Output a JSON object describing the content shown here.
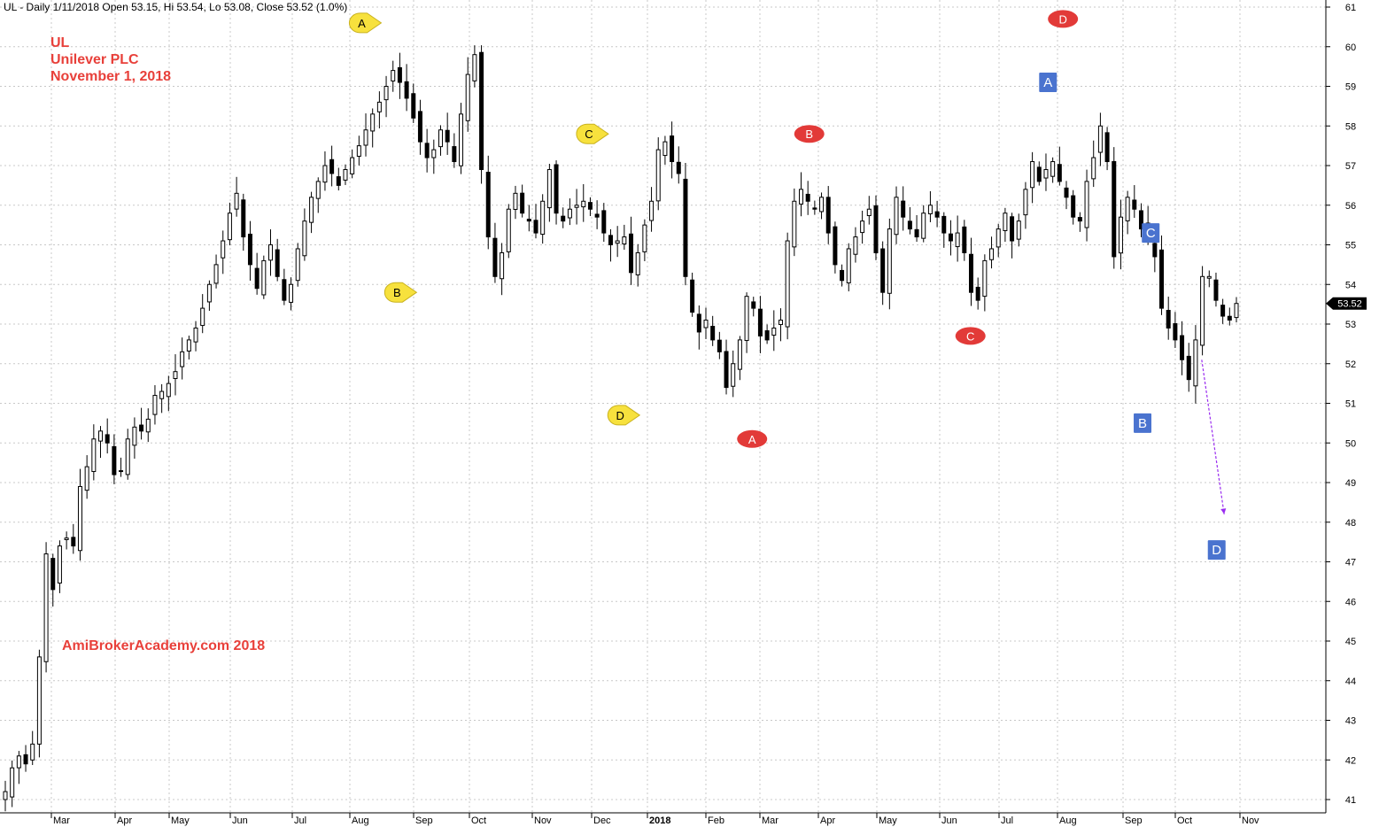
{
  "header": {
    "text": "UL - Daily 1/11/2018 Open 53.15, Hi 53.54, Lo 53.08, Close 53.52 (1.0%)"
  },
  "title": {
    "symbol": "UL",
    "name": "Unilever PLC",
    "date": "November 1, 2018"
  },
  "watermark": "AmiBrokerAcademy.com  2018",
  "chart_data": {
    "type": "candlestick",
    "ylim": [
      40.8,
      61.2
    ],
    "y_ticks": [
      41,
      42,
      43,
      44,
      45,
      46,
      47,
      48,
      49,
      50,
      51,
      52,
      53,
      54,
      55,
      56,
      57,
      58,
      59,
      60,
      61
    ],
    "x_ticks": [
      "Mar",
      "Apr",
      "May",
      "Jun",
      "Jul",
      "Aug",
      "Sep",
      "Oct",
      "Nov",
      "Dec",
      "2018",
      "Feb",
      "Mar",
      "Apr",
      "May",
      "Jun",
      "Jul",
      "Aug",
      "Sep",
      "Oct",
      "Nov"
    ],
    "last_price": "53.52",
    "grid": true,
    "series_close_approx": [
      41.2,
      41.8,
      42.1,
      41.9,
      42.4,
      44.6,
      47.2,
      46.3,
      47.4,
      47.6,
      47.4,
      48.9,
      49.4,
      50.1,
      50.3,
      50.0,
      49.2,
      49.3,
      50.1,
      50.4,
      50.3,
      50.6,
      51.2,
      51.3,
      51.5,
      51.8,
      52.3,
      52.6,
      52.9,
      53.4,
      54.0,
      54.5,
      55.1,
      55.8,
      56.3,
      55.2,
      54.5,
      53.9,
      54.6,
      55.0,
      54.2,
      53.6,
      54.0,
      54.9,
      55.6,
      56.2,
      56.6,
      57.0,
      56.8,
      56.5,
      56.9,
      57.2,
      57.5,
      57.9,
      58.3,
      58.6,
      59.0,
      59.4,
      59.1,
      58.7,
      58.2,
      57.6,
      57.2,
      57.4,
      57.9,
      57.6,
      57.1,
      58.3,
      59.3,
      59.8,
      56.9,
      55.2,
      54.2,
      54.8,
      55.9,
      56.3,
      55.8,
      55.6,
      55.3,
      56.1,
      56.9,
      55.8,
      55.6,
      55.9,
      56.0,
      56.1,
      55.9,
      55.7,
      55.3,
      55.0,
      55.1,
      55.2,
      54.3,
      54.8,
      55.5,
      56.1,
      57.4,
      57.6,
      57.1,
      56.8,
      54.2,
      53.3,
      52.8,
      53.1,
      52.6,
      52.3,
      51.4,
      52.0,
      52.6,
      53.7,
      53.4,
      52.7,
      52.6,
      52.9,
      53.1,
      55.1,
      56.1,
      56.4,
      56.1,
      55.9,
      56.2,
      55.3,
      54.5,
      54.1,
      54.9,
      55.2,
      55.6,
      55.9,
      54.8,
      53.8,
      55.4,
      56.2,
      55.7,
      55.4,
      55.2,
      55.8,
      56.0,
      55.7,
      55.3,
      55.1,
      55.3,
      54.8,
      53.8,
      53.6,
      54.6,
      54.9,
      55.4,
      55.8,
      55.1,
      55.6,
      56.4,
      57.1,
      56.6,
      56.9,
      57.1,
      56.6,
      56.2,
      55.7,
      55.6,
      56.6,
      57.2,
      58.0,
      57.1,
      54.7,
      55.7,
      56.2,
      55.9,
      55.4,
      55.1,
      54.7,
      53.4,
      52.9,
      52.6,
      52.1,
      51.6,
      52.6,
      54.2,
      54.2,
      53.6,
      53.2,
      53.1,
      53.52
    ]
  },
  "annotations": [
    {
      "label": "A",
      "shape": "yellow-tag",
      "date_idx": 52.4,
      "price": 60.6
    },
    {
      "label": "B",
      "shape": "yellow-tag",
      "date_idx": 57.6,
      "price": 53.8
    },
    {
      "label": "C",
      "shape": "yellow-tag",
      "date_idx": 85.8,
      "price": 57.8
    },
    {
      "label": "D",
      "shape": "yellow-tag",
      "date_idx": 90.4,
      "price": 50.7
    },
    {
      "label": "A",
      "shape": "red-ellipse",
      "date_idx": 109.8,
      "price": 50.1
    },
    {
      "label": "B",
      "shape": "red-ellipse",
      "date_idx": 118.2,
      "price": 57.8
    },
    {
      "label": "C",
      "shape": "red-ellipse",
      "date_idx": 141.9,
      "price": 52.7
    },
    {
      "label": "D",
      "shape": "red-ellipse",
      "date_idx": 155.5,
      "price": 60.7
    },
    {
      "label": "A",
      "shape": "blue-box",
      "date_idx": 153.3,
      "price": 59.1
    },
    {
      "label": "B",
      "shape": "blue-box",
      "date_idx": 167.2,
      "price": 50.5
    },
    {
      "label": "C",
      "shape": "blue-box",
      "date_idx": 168.4,
      "price": 55.3
    },
    {
      "label": "D",
      "shape": "blue-box",
      "date_idx": 178.1,
      "price": 47.3
    }
  ],
  "projection_arrow": {
    "from": [
      175.9,
      52.1
    ],
    "to": [
      179.2,
      48.2
    ],
    "color": "#9a2cf0"
  },
  "colors": {
    "candle": "#000000",
    "grid": "#c8c8c8",
    "title": "#e8403a",
    "yellow": "#f7e13d",
    "red": "#e23a38",
    "blue": "#4a73cf"
  }
}
